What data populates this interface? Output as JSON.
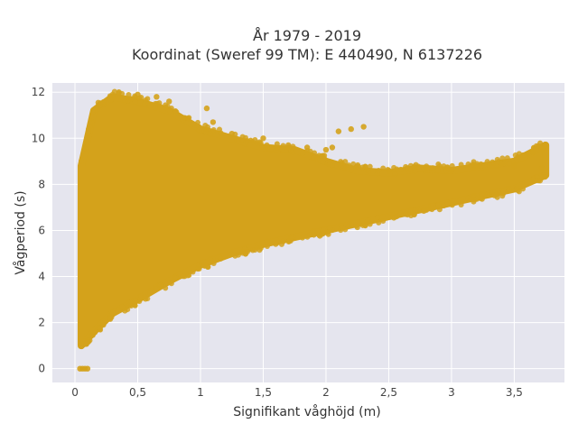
{
  "chart_data": {
    "type": "scatter",
    "title_lines": [
      "År 1979 - 2019",
      "Koordinat (Sweref 99 TM): E 440490, N 6137226"
    ],
    "xlabel": "Signifikant våghöjd (m)",
    "ylabel": "Vågperiod (s)",
    "xlim": [
      -0.18,
      3.9
    ],
    "ylim": [
      -0.6,
      12.4
    ],
    "x_ticks": [
      0,
      0.5,
      1,
      1.5,
      2,
      2.5,
      3,
      3.5
    ],
    "x_tick_labels": [
      "0",
      "0,5",
      "1",
      "1,5",
      "2",
      "2,5",
      "3",
      "3,5"
    ],
    "y_ticks": [
      0,
      2,
      4,
      6,
      8,
      10,
      12
    ],
    "y_tick_labels": [
      "0",
      "2",
      "4",
      "6",
      "8",
      "10",
      "12"
    ],
    "grid": true,
    "legend": "none",
    "colors": {
      "marker": "#D4A21B",
      "plot_background": "#E5E5EE",
      "grid": "#FFFFFF"
    },
    "density_envelope": [
      {
        "x": 0.05,
        "ymin": 1.0,
        "ymax": 8.8
      },
      {
        "x": 0.15,
        "ymin": 1.6,
        "ymax": 11.2
      },
      {
        "x": 0.3,
        "ymin": 2.4,
        "ymax": 11.8
      },
      {
        "x": 0.5,
        "ymin": 3.0,
        "ymax": 11.6
      },
      {
        "x": 0.75,
        "ymin": 3.8,
        "ymax": 11.2
      },
      {
        "x": 1.0,
        "ymin": 4.5,
        "ymax": 10.4
      },
      {
        "x": 1.25,
        "ymin": 5.0,
        "ymax": 10.0
      },
      {
        "x": 1.5,
        "ymin": 5.4,
        "ymax": 9.6
      },
      {
        "x": 1.75,
        "ymin": 5.7,
        "ymax": 9.5
      },
      {
        "x": 2.0,
        "ymin": 6.0,
        "ymax": 9.0
      },
      {
        "x": 2.25,
        "ymin": 6.3,
        "ymax": 8.6
      },
      {
        "x": 2.5,
        "ymin": 6.6,
        "ymax": 8.5
      },
      {
        "x": 2.75,
        "ymin": 6.9,
        "ymax": 8.7
      },
      {
        "x": 3.0,
        "ymin": 7.2,
        "ymax": 8.6
      },
      {
        "x": 3.25,
        "ymin": 7.5,
        "ymax": 8.8
      },
      {
        "x": 3.5,
        "ymin": 7.8,
        "ymax": 9.0
      },
      {
        "x": 3.75,
        "ymin": 8.4,
        "ymax": 9.7
      }
    ],
    "points": [
      {
        "x": 0.04,
        "y": 0.0
      },
      {
        "x": 0.06,
        "y": 0.0
      },
      {
        "x": 0.08,
        "y": 0.0
      },
      {
        "x": 0.1,
        "y": 0.0
      },
      {
        "x": 0.35,
        "y": 12.0
      },
      {
        "x": 0.5,
        "y": 11.9
      },
      {
        "x": 0.65,
        "y": 11.8
      },
      {
        "x": 0.75,
        "y": 11.6
      },
      {
        "x": 1.05,
        "y": 11.3
      },
      {
        "x": 1.1,
        "y": 10.7
      },
      {
        "x": 1.25,
        "y": 10.2
      },
      {
        "x": 1.4,
        "y": 9.9
      },
      {
        "x": 1.5,
        "y": 10.0
      },
      {
        "x": 1.7,
        "y": 9.7
      },
      {
        "x": 1.85,
        "y": 9.6
      },
      {
        "x": 2.0,
        "y": 9.5
      },
      {
        "x": 2.05,
        "y": 9.6
      },
      {
        "x": 2.2,
        "y": 10.4
      },
      {
        "x": 2.3,
        "y": 10.5
      },
      {
        "x": 2.1,
        "y": 10.3
      },
      {
        "x": 2.5,
        "y": 8.6
      },
      {
        "x": 2.8,
        "y": 8.7
      },
      {
        "x": 3.0,
        "y": 8.6
      },
      {
        "x": 3.2,
        "y": 8.8
      },
      {
        "x": 3.4,
        "y": 8.9
      },
      {
        "x": 3.5,
        "y": 8.8
      },
      {
        "x": 3.6,
        "y": 9.3
      },
      {
        "x": 3.65,
        "y": 9.4
      },
      {
        "x": 3.72,
        "y": 9.5
      },
      {
        "x": 3.75,
        "y": 9.7
      },
      {
        "x": 3.72,
        "y": 8.7
      }
    ]
  }
}
